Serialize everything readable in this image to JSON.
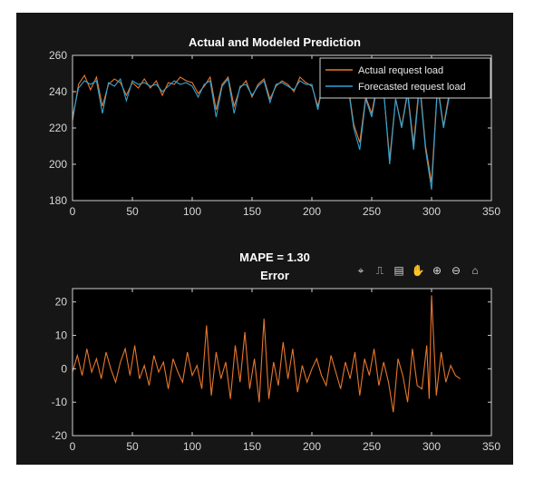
{
  "figure": {
    "toolbar": [
      "brush-icon",
      "datatip-icon",
      "export-icon",
      "pan-icon",
      "zoom-in-icon",
      "zoom-out-icon",
      "home-icon"
    ]
  },
  "colors": {
    "background": "#161616",
    "axes_bg": "#000000",
    "axis_line": "#cfcfcf",
    "grid": "#3a3a3a",
    "text": "#d8d8d8",
    "actual": "#e8762d",
    "forecast": "#2fa4d6"
  },
  "chart_data": [
    {
      "type": "line",
      "title": "Actual and Modeled Prediction",
      "xlabel": "",
      "ylabel": "",
      "xlim": [
        0,
        350
      ],
      "ylim": [
        180,
        260
      ],
      "xticks": [
        0,
        50,
        100,
        150,
        200,
        250,
        300,
        350
      ],
      "yticks": [
        180,
        200,
        220,
        240,
        260
      ],
      "grid": false,
      "legend_position": "top-right",
      "x": [
        0,
        5,
        10,
        15,
        20,
        25,
        30,
        35,
        40,
        45,
        50,
        55,
        60,
        65,
        70,
        75,
        80,
        85,
        90,
        95,
        100,
        105,
        110,
        115,
        120,
        125,
        130,
        135,
        140,
        145,
        150,
        155,
        160,
        165,
        170,
        175,
        180,
        185,
        190,
        195,
        200,
        205,
        210,
        215,
        220,
        225,
        230,
        235,
        240,
        245,
        250,
        255,
        260,
        265,
        270,
        275,
        280,
        285,
        290,
        295,
        300,
        305,
        310,
        315,
        320,
        325
      ],
      "series": [
        {
          "name": "Actual request load",
          "color": "#e8762d",
          "values": [
            224,
            244,
            249,
            241,
            248,
            232,
            244,
            247,
            245,
            238,
            245,
            242,
            247,
            242,
            246,
            238,
            245,
            244,
            248,
            246,
            245,
            239,
            243,
            248,
            230,
            244,
            248,
            232,
            242,
            246,
            237,
            244,
            247,
            236,
            243,
            246,
            244,
            240,
            248,
            245,
            243,
            232,
            246,
            241,
            247,
            239,
            245,
            222,
            212,
            237,
            228,
            246,
            240,
            203,
            236,
            221,
            240,
            211,
            246,
            210,
            190,
            244,
            221,
            240,
            248,
            244
          ]
        },
        {
          "name": "Forecasted request load",
          "color": "#2fa4d6",
          "values": [
            226,
            242,
            246,
            244,
            246,
            228,
            245,
            243,
            247,
            235,
            246,
            244,
            245,
            243,
            244,
            240,
            243,
            246,
            244,
            245,
            243,
            237,
            244,
            246,
            226,
            243,
            247,
            228,
            243,
            244,
            238,
            243,
            246,
            234,
            244,
            245,
            243,
            241,
            246,
            244,
            244,
            230,
            247,
            240,
            246,
            240,
            244,
            220,
            208,
            236,
            226,
            245,
            241,
            200,
            236,
            220,
            239,
            208,
            244,
            208,
            186,
            243,
            220,
            238,
            246,
            243
          ]
        }
      ]
    },
    {
      "type": "line",
      "title": "MAPE = 1.30",
      "subtitle": "Error",
      "xlabel": "",
      "ylabel": "",
      "xlim": [
        0,
        350
      ],
      "ylim": [
        -20,
        24
      ],
      "xticks": [
        0,
        50,
        100,
        150,
        200,
        250,
        300,
        350
      ],
      "yticks": [
        -20,
        -10,
        0,
        10,
        20
      ],
      "grid": false,
      "x": [
        0,
        4,
        8,
        12,
        16,
        20,
        24,
        28,
        32,
        36,
        40,
        44,
        48,
        52,
        56,
        60,
        64,
        68,
        72,
        76,
        80,
        84,
        88,
        92,
        96,
        100,
        104,
        108,
        112,
        116,
        120,
        124,
        128,
        132,
        136,
        140,
        144,
        148,
        152,
        156,
        160,
        164,
        168,
        172,
        176,
        180,
        184,
        188,
        192,
        196,
        200,
        204,
        208,
        212,
        216,
        220,
        224,
        228,
        232,
        236,
        240,
        244,
        248,
        252,
        256,
        260,
        264,
        268,
        272,
        276,
        280,
        284,
        288,
        292,
        296,
        298,
        300,
        304,
        308,
        312,
        316,
        320,
        324
      ],
      "series": [
        {
          "name": "Error",
          "color": "#e8762d",
          "values": [
            -1,
            4,
            -2,
            6,
            -1,
            3,
            -3,
            5,
            0,
            -4,
            2,
            6,
            -2,
            7,
            -3,
            1,
            -5,
            4,
            -1,
            2,
            -6,
            3,
            -1,
            -4,
            5,
            -2,
            1,
            -6,
            13,
            -8,
            5,
            -3,
            2,
            -9,
            7,
            -4,
            11,
            -6,
            3,
            -10,
            15,
            -9,
            2,
            -5,
            8,
            -3,
            6,
            -7,
            1,
            -4,
            0,
            3,
            -2,
            -5,
            4,
            -1,
            -6,
            2,
            -3,
            5,
            -8,
            3,
            -2,
            6,
            -5,
            2,
            -4,
            -13,
            3,
            -2,
            -10,
            6,
            -5,
            -6,
            7,
            -9,
            22,
            -8,
            5,
            -4,
            1,
            -2,
            -3
          ]
        }
      ]
    }
  ]
}
